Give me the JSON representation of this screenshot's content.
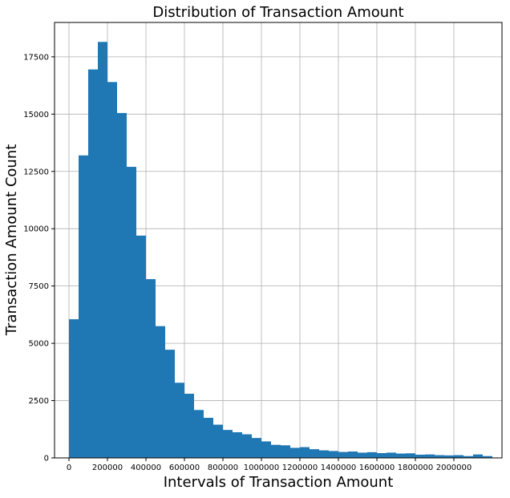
{
  "chart_data": {
    "type": "bar",
    "title": "Distribution of Transaction Amount",
    "xlabel": "Intervals of Transaction Amount",
    "ylabel": "Transaction Amount Count",
    "xlim": [
      -75000,
      2250000
    ],
    "ylim": [
      0,
      19000
    ],
    "grid": true,
    "bin_width": 50000,
    "bin_start": 0,
    "values": [
      6050,
      13200,
      16950,
      18150,
      16400,
      15050,
      12700,
      9700,
      7800,
      5750,
      4720,
      3280,
      2800,
      2090,
      1750,
      1450,
      1220,
      1120,
      1030,
      870,
      720,
      570,
      550,
      440,
      470,
      380,
      330,
      300,
      260,
      280,
      230,
      250,
      210,
      230,
      190,
      200,
      140,
      150,
      120,
      110,
      120,
      80,
      150,
      80
    ],
    "xticks": [
      0,
      200000,
      400000,
      600000,
      800000,
      1000000,
      1200000,
      1400000,
      1600000,
      1800000,
      2000000
    ],
    "xtick_labels": [
      "0",
      "200000",
      "400000",
      "600000",
      "800000",
      "1000000",
      "1200000",
      "1400000",
      "1600000",
      "1800000",
      "2000000"
    ],
    "yticks": [
      0,
      2500,
      5000,
      7500,
      10000,
      12500,
      15000,
      17500
    ],
    "ytick_labels": [
      "0",
      "2500",
      "5000",
      "7500",
      "10000",
      "12500",
      "15000",
      "17500"
    ],
    "bar_color": "#1f77b4",
    "grid_color": "#b0b0b0"
  }
}
